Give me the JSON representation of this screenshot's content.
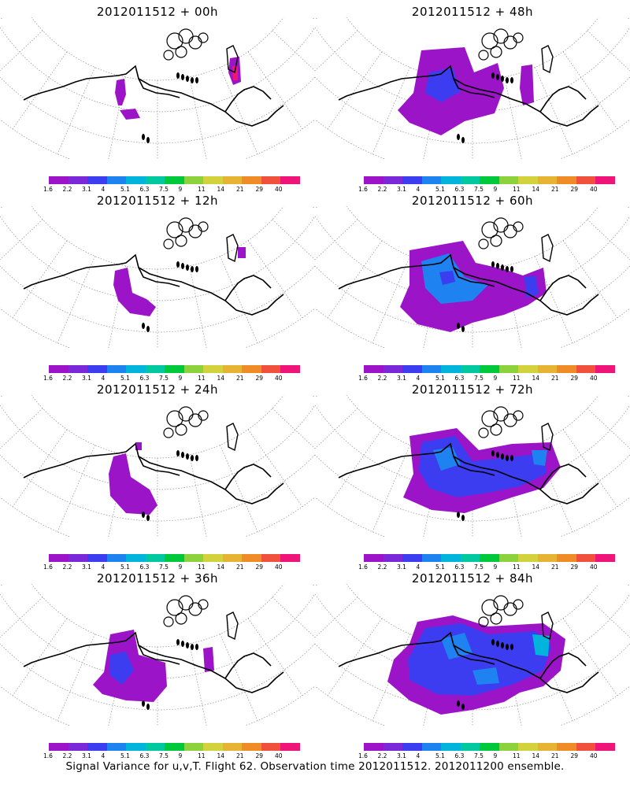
{
  "panels": [
    {
      "title": "2012011512 + 00h"
    },
    {
      "title": "2012011512 + 48h"
    },
    {
      "title": "2012011512 + 12h"
    },
    {
      "title": "2012011512 + 60h"
    },
    {
      "title": "2012011512 + 24h"
    },
    {
      "title": "2012011512 + 72h"
    },
    {
      "title": "2012011512 + 36h"
    },
    {
      "title": "2012011512 + 84h"
    }
  ],
  "colorbar": {
    "labels": [
      "1.6",
      "2.2",
      "3.1",
      "4",
      "5.1",
      "6.3",
      "7.5",
      "9",
      "11",
      "14",
      "21",
      "29",
      "40"
    ],
    "colors": [
      "#9b14c8",
      "#7a28d8",
      "#3c3cf0",
      "#1e82f0",
      "#00b4dc",
      "#00c8a0",
      "#00c83c",
      "#8cd23c",
      "#d2d23c",
      "#e6b432",
      "#f08c28",
      "#f0503c",
      "#f01478"
    ]
  },
  "footer": "Signal Variance for u,v,T. Flight 62. Observation time 2012011512. 2012011200 ensemble."
}
